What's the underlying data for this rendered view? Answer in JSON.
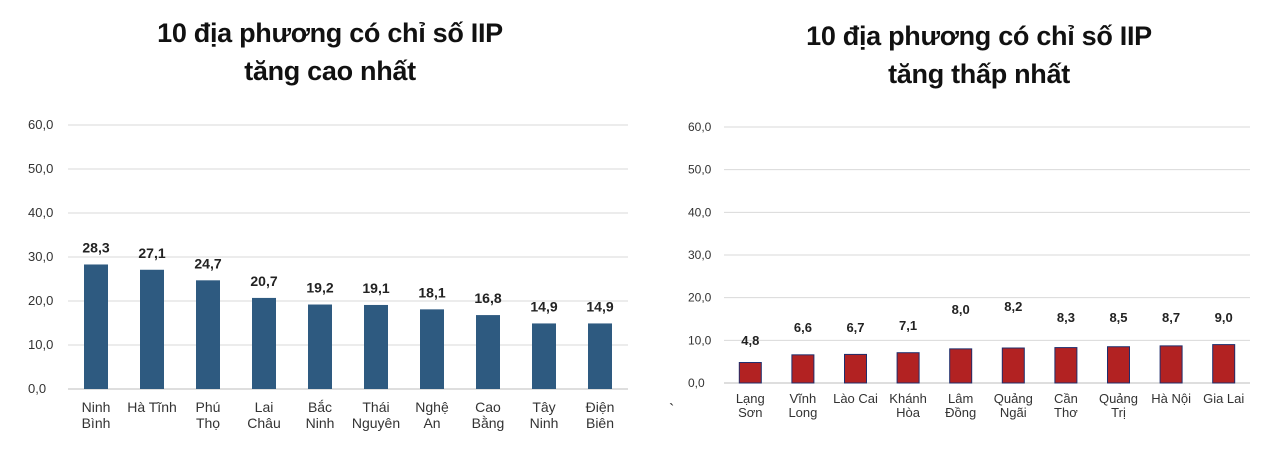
{
  "charts_meta": {
    "left": {
      "title_line1": "10 địa phương có chỉ số IIP",
      "title_line2": "tăng cao nhất"
    },
    "right": {
      "title_line1": "10 địa phương có chỉ số IIP",
      "title_line2": "tăng thấp nhất"
    }
  },
  "stray_mark": "`",
  "chart_data": [
    {
      "type": "bar",
      "title": "10 địa phương có chỉ số IIP tăng cao nhất",
      "categories": [
        [
          "Ninh",
          "Bình"
        ],
        [
          "Hà Tĩnh"
        ],
        [
          "Phú",
          "Thọ"
        ],
        [
          "Lai",
          "Châu"
        ],
        [
          "Bắc",
          "Ninh"
        ],
        [
          "Thái",
          "Nguyên"
        ],
        [
          "Nghệ",
          "An"
        ],
        [
          "Cao",
          "Bằng"
        ],
        [
          "Tây",
          "Ninh"
        ],
        [
          "Điện",
          "Biên"
        ]
      ],
      "values": [
        28.3,
        27.1,
        24.7,
        20.7,
        19.2,
        19.1,
        18.1,
        16.8,
        14.9,
        14.9
      ],
      "value_labels": [
        "28,3",
        "27,1",
        "24,7",
        "20,7",
        "19,2",
        "19,1",
        "18,1",
        "16,8",
        "14,9",
        "14,9"
      ],
      "ylim": [
        0,
        60
      ],
      "yticks": [
        "0,0",
        "10,0",
        "20,0",
        "30,0",
        "40,0",
        "50,0",
        "60,0"
      ],
      "grid": true,
      "bar_color": "#2e5a80",
      "xlabel": "",
      "ylabel": ""
    },
    {
      "type": "bar",
      "title": "10 địa phương có chỉ số IIP tăng thấp nhất",
      "categories": [
        [
          "Lạng",
          "Sơn"
        ],
        [
          "Vĩnh",
          "Long"
        ],
        [
          "Lào Cai"
        ],
        [
          "Khánh",
          "Hòa"
        ],
        [
          "Lâm",
          "Đồng"
        ],
        [
          "Quảng",
          "Ngãi"
        ],
        [
          "Cần",
          "Thơ"
        ],
        [
          "Quảng",
          "Trị"
        ],
        [
          "Hà Nội"
        ],
        [
          "Gia Lai"
        ]
      ],
      "values": [
        4.8,
        6.6,
        6.7,
        7.1,
        8.0,
        8.2,
        8.3,
        8.5,
        8.7,
        9.0
      ],
      "value_labels": [
        "4,8",
        "6,6",
        "6,7",
        "7,1",
        "8,0",
        "8,2",
        "8,3",
        "8,5",
        "8,7",
        "9,0"
      ],
      "ylim": [
        0,
        60
      ],
      "yticks": [
        "0,0",
        "10,0",
        "20,0",
        "30,0",
        "40,0",
        "50,0",
        "60,0"
      ],
      "grid": true,
      "bar_color": "#b22222",
      "bar_edge_color": "#1f2d6b",
      "xlabel": "",
      "ylabel": ""
    }
  ]
}
